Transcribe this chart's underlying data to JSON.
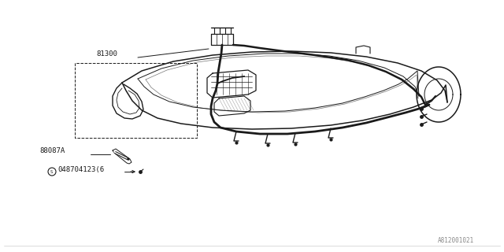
{
  "bg_color": "#ffffff",
  "line_color": "#1a1a1a",
  "label_color": "#1a1a1a",
  "gray_color": "#888888",
  "part_81300": "81300",
  "part_88087A": "88087A",
  "part_circle": "048704123(6",
  "diagram_number": "A812001021",
  "fig_width": 6.4,
  "fig_height": 3.2,
  "dpi": 100,
  "border_color": "#cccccc"
}
